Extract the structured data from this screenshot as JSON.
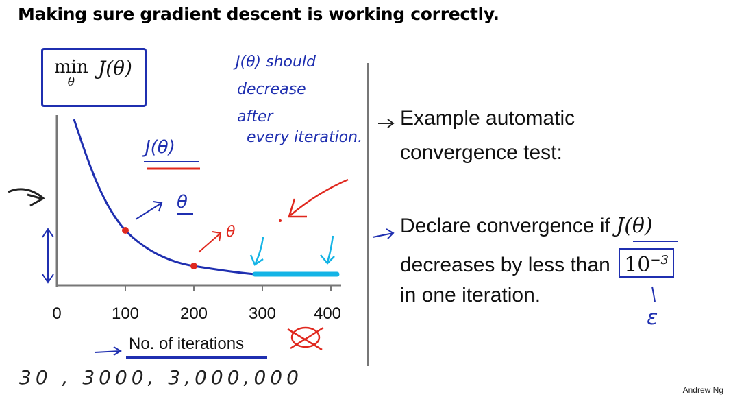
{
  "slide": {
    "title": "Making sure gradient descent is working correctly.",
    "author": "Andrew Ng"
  },
  "formula": {
    "min": "min",
    "sub": "θ",
    "func": "J(θ)"
  },
  "plot": {
    "x_ticks": [
      "0",
      "100",
      "200",
      "300",
      "400"
    ],
    "x_label": "No. of iterations"
  },
  "annotations": {
    "note_lines": [
      "J(θ) should",
      "decrease",
      "after",
      "every iteration."
    ],
    "curve_label": "J(θ)",
    "theta_blue": "θ",
    "theta_red": "θ",
    "bottom_counts": "30 ,   3000,  3,000,000",
    "epsilon": "ε"
  },
  "right_panel": {
    "line1": "Example automatic",
    "line2": "convergence test:",
    "line3_prefix": "Declare convergence if ",
    "line3_math": "J(θ)",
    "line4_prefix": "decreases by less than ",
    "line4_base": "10",
    "line4_exp": "−3",
    "line5": "in one iteration."
  },
  "colors": {
    "ink_blue": "#1f2fb0",
    "ink_red": "#e0281e",
    "highlight_cyan": "#14b4e6",
    "divider": "#777777"
  }
}
